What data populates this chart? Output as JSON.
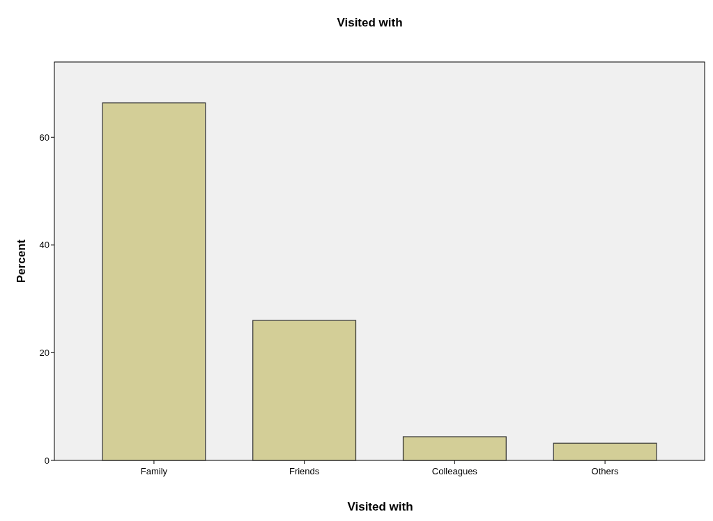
{
  "chart_data": {
    "type": "bar",
    "title": "Visited with",
    "xlabel": "Visited with",
    "ylabel": "Percent",
    "categories": [
      "Family",
      "Friends",
      "Colleagues",
      "Others"
    ],
    "values": [
      66.4,
      26.0,
      4.4,
      3.2
    ],
    "color": "#d3ce97",
    "ylim": [
      0,
      74
    ],
    "yticks": [
      0,
      20,
      40,
      60
    ]
  }
}
